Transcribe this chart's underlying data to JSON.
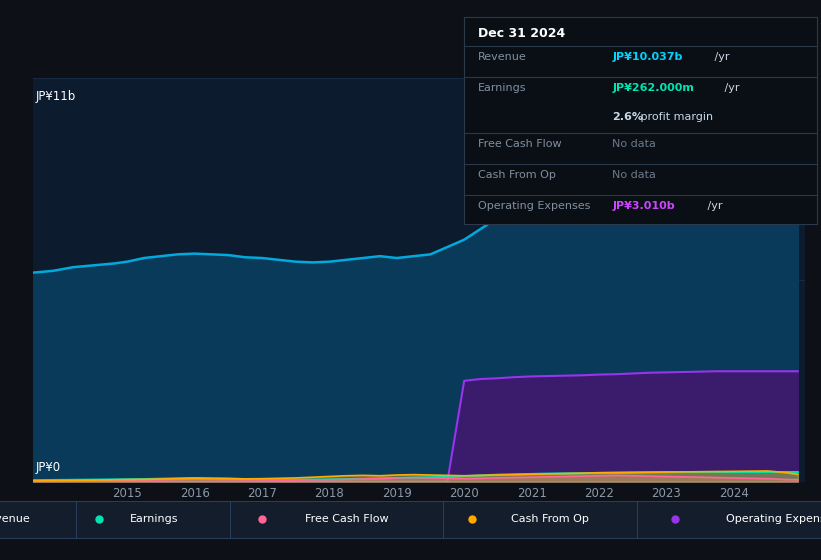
{
  "background_color": "#0d1117",
  "plot_bg_color": "#0d1b2e",
  "title_box": {
    "date": "Dec 31 2024",
    "revenue_label": "Revenue",
    "revenue_value": "JP¥10.037b",
    "revenue_suffix": " /yr",
    "earnings_label": "Earnings",
    "earnings_value": "JP¥262.000m",
    "earnings_suffix": " /yr",
    "profit_margin_bold": "2.6%",
    "profit_margin_rest": " profit margin",
    "fcf_label": "Free Cash Flow",
    "fcf_value": "No data",
    "cfop_label": "Cash From Op",
    "cfop_value": "No data",
    "opex_label": "Operating Expenses",
    "opex_value": "JP¥3.010b",
    "opex_suffix": " /yr",
    "highlight_color": "#00d4ff",
    "earnings_highlight": "#00e5b0",
    "opex_color": "#cc44ff",
    "nodata_color": "#6a7a8a"
  },
  "ylabel_top": "JP¥11b",
  "ylabel_bottom": "JP¥0",
  "x_ticks": [
    "2015",
    "2016",
    "2017",
    "2018",
    "2019",
    "2020",
    "2021",
    "2022",
    "2023",
    "2024"
  ],
  "x_tick_positions": [
    2015,
    2016,
    2017,
    2018,
    2019,
    2020,
    2021,
    2022,
    2023,
    2024
  ],
  "years": [
    2013.6,
    2013.9,
    2014.2,
    2014.5,
    2014.8,
    2015.0,
    2015.25,
    2015.5,
    2015.75,
    2016.0,
    2016.25,
    2016.5,
    2016.75,
    2017.0,
    2017.25,
    2017.5,
    2017.75,
    2018.0,
    2018.25,
    2018.5,
    2018.75,
    2019.0,
    2019.25,
    2019.5,
    2019.75,
    2020.0,
    2020.25,
    2020.5,
    2020.75,
    2021.0,
    2021.25,
    2021.5,
    2021.75,
    2022.0,
    2022.25,
    2022.5,
    2022.75,
    2023.0,
    2023.25,
    2023.5,
    2023.75,
    2024.0,
    2024.25,
    2024.5,
    2024.75,
    2024.95
  ],
  "revenue": [
    5.7,
    5.75,
    5.85,
    5.9,
    5.95,
    6.0,
    6.1,
    6.15,
    6.2,
    6.22,
    6.2,
    6.18,
    6.12,
    6.1,
    6.05,
    6.0,
    5.98,
    6.0,
    6.05,
    6.1,
    6.15,
    6.1,
    6.15,
    6.2,
    6.4,
    6.6,
    6.9,
    7.2,
    7.5,
    7.8,
    8.0,
    8.2,
    8.45,
    8.7,
    8.85,
    9.0,
    9.1,
    9.2,
    9.3,
    9.4,
    9.55,
    9.65,
    9.75,
    9.85,
    9.95,
    10.037
  ],
  "earnings": [
    0.04,
    0.045,
    0.05,
    0.055,
    0.06,
    0.065,
    0.07,
    0.08,
    0.09,
    0.1,
    0.09,
    0.085,
    0.07,
    0.065,
    0.055,
    0.05,
    0.055,
    0.06,
    0.07,
    0.08,
    0.09,
    0.1,
    0.11,
    0.12,
    0.13,
    0.15,
    0.17,
    0.19,
    0.2,
    0.21,
    0.22,
    0.225,
    0.23,
    0.24,
    0.245,
    0.25,
    0.255,
    0.26,
    0.262,
    0.263,
    0.264,
    0.262,
    0.263,
    0.264,
    0.262,
    0.262
  ],
  "free_cash_flow": [
    0.01,
    0.015,
    0.02,
    0.025,
    0.03,
    0.035,
    0.04,
    0.05,
    0.06,
    0.065,
    0.06,
    0.055,
    0.05,
    0.045,
    0.04,
    0.04,
    0.045,
    0.05,
    0.06,
    0.07,
    0.08,
    0.1,
    0.11,
    0.1,
    0.09,
    0.08,
    0.09,
    0.1,
    0.11,
    0.12,
    0.13,
    0.14,
    0.15,
    0.16,
    0.17,
    0.16,
    0.15,
    0.14,
    0.13,
    0.12,
    0.11,
    0.1,
    0.09,
    0.08,
    0.06,
    0.05
  ],
  "cash_from_op": [
    0.02,
    0.025,
    0.03,
    0.04,
    0.05,
    0.055,
    0.06,
    0.07,
    0.08,
    0.09,
    0.085,
    0.08,
    0.075,
    0.08,
    0.09,
    0.1,
    0.12,
    0.14,
    0.16,
    0.17,
    0.16,
    0.18,
    0.19,
    0.18,
    0.17,
    0.16,
    0.17,
    0.18,
    0.19,
    0.2,
    0.21,
    0.22,
    0.23,
    0.24,
    0.245,
    0.25,
    0.255,
    0.26,
    0.265,
    0.27,
    0.275,
    0.28,
    0.285,
    0.29,
    0.25,
    0.2
  ],
  "operating_expenses": [
    0.0,
    0.0,
    0.0,
    0.0,
    0.0,
    0.0,
    0.0,
    0.0,
    0.0,
    0.0,
    0.0,
    0.0,
    0.0,
    0.0,
    0.0,
    0.0,
    0.0,
    0.0,
    0.0,
    0.0,
    0.0,
    0.0,
    0.0,
    0.0,
    0.0,
    2.75,
    2.8,
    2.82,
    2.85,
    2.87,
    2.88,
    2.89,
    2.9,
    2.92,
    2.93,
    2.95,
    2.97,
    2.98,
    2.99,
    3.0,
    3.01,
    3.01,
    3.01,
    3.01,
    3.01,
    3.01
  ],
  "revenue_color": "#00aadd",
  "earnings_color": "#00e5b0",
  "fcf_color": "#ff6699",
  "cash_from_op_color": "#ffaa00",
  "opex_color": "#9933ee",
  "opex_fill_color": "#3d1a6e",
  "revenue_fill_color": "#0a3a5a",
  "ylim": [
    0,
    11
  ],
  "xlim": [
    2013.6,
    2025.05
  ],
  "grid_color": "#1e3050",
  "legend_bg": "#141d2b",
  "legend_border": "#2a3f5f"
}
